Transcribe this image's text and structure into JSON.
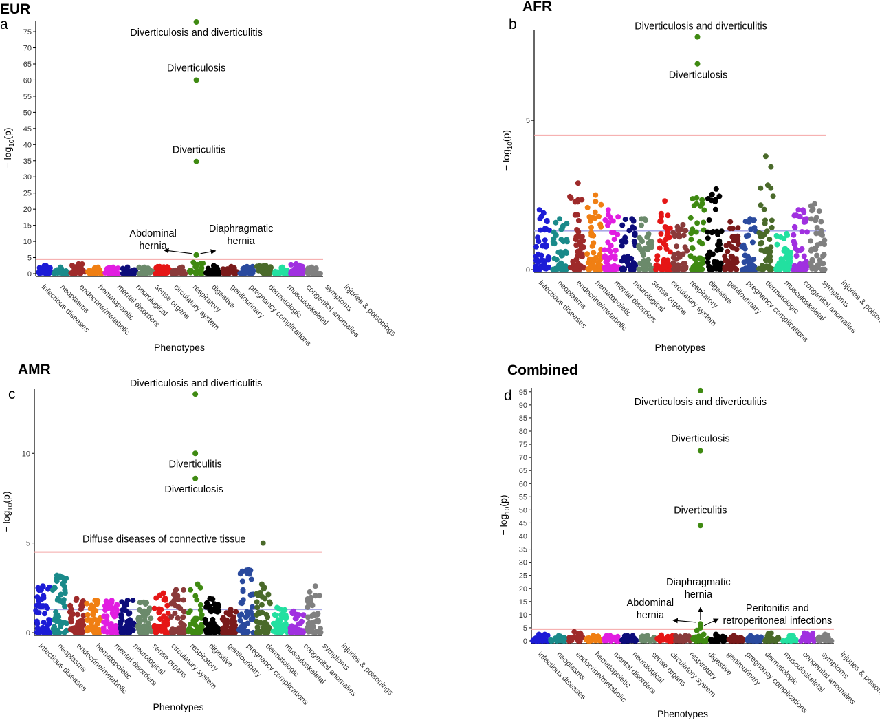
{
  "figure": {
    "categories": [
      "infectious diseases",
      "neoplasms",
      "endocrine/metabolic",
      "hematopoietic",
      "mental disorders",
      "neurological",
      "sense organs",
      "circulatory system",
      "respiratory",
      "digestive",
      "genitourinary",
      "pregnancy complications",
      "dermatologic",
      "musculoskeletal",
      "congenital anomalies",
      "symptoms",
      "injuries & poisonings"
    ],
    "colors": {
      "infectious diseases": "#1c1cd6",
      "neoplasms": "#1a8a8a",
      "endocrine/metabolic": "#9e2a2a",
      "hematopoietic": "#f07f13",
      "mental disorders": "#e11de1",
      "neurological": "#0c0c7a",
      "sense organs": "#6b8a6b",
      "circulatory system": "#e51616",
      "respiratory": "#8a3a3a",
      "digestive": "#3f8a12",
      "genitourinary": "#000000",
      "pregnancy complications": "#7a1a1a",
      "dermatologic": "#2a4a9e",
      "musculoskeletal": "#4a6a2a",
      "congenital anomalies": "#22e0a0",
      "symptoms": "#a030e0",
      "injuries & poisonings": "#808080"
    },
    "significance_line_color": "#f4a6a6",
    "suggestive_line_color": "#a9a9e6"
  },
  "chart_data": [
    {
      "type": "scatter",
      "panel_letter": "a",
      "title": "EUR",
      "xlabel": "Phenotypes",
      "ylabel": "− log10(p)",
      "yticks": [
        0,
        5,
        10,
        15,
        20,
        25,
        30,
        35,
        40,
        45,
        50,
        55,
        60,
        65,
        70,
        75
      ],
      "ylim": [
        0,
        78
      ],
      "significance_threshold": 4.5,
      "suggestive_threshold": null,
      "background_max": [
        2.5,
        2.0,
        3.0,
        2.0,
        2.0,
        2.0,
        2.0,
        2.2,
        2.0,
        3.5,
        2.5,
        2.2,
        2.2,
        2.5,
        2.0,
        3.0,
        2.0
      ],
      "highlights": [
        {
          "label": "Diverticulosis and diverticulitis",
          "category": "digestive",
          "value": 78.0
        },
        {
          "label": "Diverticulosis",
          "category": "digestive",
          "value": 60.0
        },
        {
          "label": "Diverticulitis",
          "category": "digestive",
          "value": 34.8
        },
        {
          "label": "Abdominal\nhernia",
          "category": "digestive",
          "value": 5.8
        },
        {
          "label": "Diaphragmatic\nhernia",
          "category": "digestive",
          "value": 5.8
        }
      ]
    },
    {
      "type": "scatter",
      "panel_letter": "b",
      "title": "AFR",
      "xlabel": "Phenotypes",
      "ylabel": "− log10(p)",
      "yticks": [
        0,
        5
      ],
      "ylim": [
        0,
        8
      ],
      "significance_threshold": 4.5,
      "suggestive_threshold": 1.3,
      "background_max": [
        2.0,
        1.7,
        2.9,
        2.5,
        2.0,
        1.7,
        1.7,
        2.3,
        1.5,
        2.4,
        2.7,
        1.6,
        1.7,
        3.8,
        1.2,
        2.0,
        2.2
      ],
      "highlights": [
        {
          "label": "Diverticulosis and diverticulitis",
          "category": "digestive",
          "value": 7.8
        },
        {
          "label": "Diverticulosis",
          "category": "digestive",
          "value": 6.9
        }
      ]
    },
    {
      "type": "scatter",
      "panel_letter": "c",
      "title": "AMR",
      "xlabel": "Phenotypes",
      "ylabel": "− log10(p)",
      "yticks": [
        0,
        5,
        10
      ],
      "ylim": [
        0,
        13.5
      ],
      "significance_threshold": 4.5,
      "suggestive_threshold": 1.3,
      "background_max": [
        2.6,
        3.2,
        1.9,
        1.8,
        1.8,
        1.8,
        1.7,
        2.2,
        2.4,
        2.7,
        1.9,
        1.3,
        3.5,
        2.7,
        1.4,
        1.2,
        2.6
      ],
      "highlights": [
        {
          "label": "Diverticulosis and diverticulitis",
          "category": "digestive",
          "value": 13.3
        },
        {
          "label": "Diverticulitis",
          "category": "digestive",
          "value": 10.0
        },
        {
          "label": "Diverticulosis",
          "category": "digestive",
          "value": 8.6
        },
        {
          "label": "Diffuse diseases of connective tissue",
          "category": "musculoskeletal",
          "value": 5.0
        }
      ]
    },
    {
      "type": "scatter",
      "panel_letter": "d",
      "title": "Combined",
      "xlabel": "Phenotypes",
      "ylabel": "− log10(p)",
      "yticks": [
        0,
        5,
        10,
        15,
        20,
        25,
        30,
        35,
        40,
        45,
        50,
        55,
        60,
        65,
        70,
        75,
        80,
        85,
        90,
        95
      ],
      "ylim": [
        0,
        96
      ],
      "significance_threshold": 4.5,
      "suggestive_threshold": null,
      "background_max": [
        2.5,
        2.0,
        3.5,
        2.0,
        2.0,
        2.0,
        2.0,
        2.2,
        2.0,
        4.0,
        2.5,
        2.0,
        2.0,
        3.0,
        2.0,
        3.0,
        2.5
      ],
      "highlights": [
        {
          "label": "Diverticulosis and diverticulitis",
          "category": "digestive",
          "value": 95.5
        },
        {
          "label": "Diverticulosis",
          "category": "digestive",
          "value": 72.5
        },
        {
          "label": "Diverticulitis",
          "category": "digestive",
          "value": 44.0
        },
        {
          "label": "Diaphragmatic\nhernia",
          "category": "digestive",
          "value": 6.5
        },
        {
          "label": "Abdominal\nhernia",
          "category": "digestive",
          "value": 6.3
        },
        {
          "label": "Peritonitis and\nretroperitoneal infections",
          "category": "digestive",
          "value": 5.0
        }
      ]
    }
  ]
}
